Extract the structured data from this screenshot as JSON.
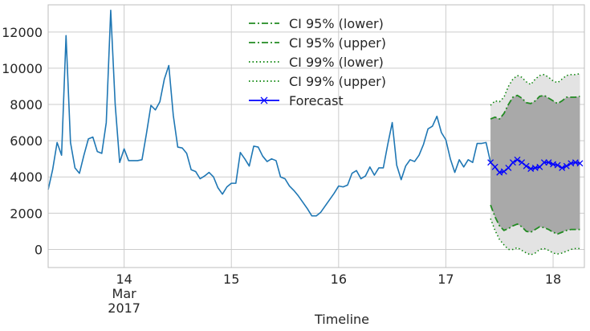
{
  "chart_data": {
    "type": "line",
    "xlabel": "Timeline",
    "ylabel": "",
    "title": "",
    "x_start": "2017-03-13 07:00",
    "x_end": "2017-03-18 07:00",
    "ylim": [
      -1000,
      13500
    ],
    "grid": true,
    "legend_position": "top-center",
    "x_ticks": [
      {
        "label": "14",
        "sub": "Mar",
        "sub2": "2017",
        "date": "2017-03-14 00:00"
      },
      {
        "label": "15",
        "sub": "",
        "sub2": "",
        "date": "2017-03-15 00:00"
      },
      {
        "label": "16",
        "sub": "",
        "sub2": "",
        "date": "2017-03-16 00:00"
      },
      {
        "label": "17",
        "sub": "",
        "sub2": "",
        "date": "2017-03-17 00:00"
      },
      {
        "label": "18",
        "sub": "",
        "sub2": "",
        "date": "2017-03-18 00:00"
      }
    ],
    "y_ticks": [
      0,
      2000,
      4000,
      6000,
      8000,
      10000,
      12000
    ],
    "y_tick_labels": [
      "0",
      "2000",
      "4000",
      "6000",
      "8000",
      "10000",
      "12000"
    ],
    "observed": {
      "name": "",
      "color": "#1f77b4",
      "x_start": "2017-03-13 07:00",
      "step_hours": 1,
      "values": [
        3300,
        4400,
        5900,
        5200,
        11800,
        5900,
        4500,
        4200,
        5200,
        6100,
        6200,
        5400,
        5300,
        7000,
        13200,
        8000,
        4800,
        5550,
        4900,
        4900,
        4900,
        4950,
        6400,
        7950,
        7700,
        8150,
        9400,
        10150,
        7400,
        5650,
        5600,
        5300,
        4400,
        4300,
        3900,
        4050,
        4250,
        4000,
        3400,
        3050,
        3450,
        3650,
        3650,
        5350,
        5000,
        4600,
        5700,
        5650,
        5150,
        4850,
        5000,
        4900,
        4000,
        3900,
        3500,
        3250,
        2950,
        2600,
        2250,
        1850,
        1850,
        2050,
        2400,
        2750,
        3100,
        3500,
        3450,
        3550,
        4200,
        4350,
        3900,
        4050,
        4550,
        4100,
        4500,
        4500,
        5800,
        7000,
        4650,
        3850,
        4600,
        4950,
        4850,
        5200,
        5800,
        6650,
        6800,
        7350,
        6450,
        6050,
        5000,
        4250,
        4950,
        4550,
        4950,
        4800,
        5850,
        5850,
        5900,
        4800
      ]
    },
    "forecast": {
      "x_start": "2017-03-17 10:00",
      "step_hours": 1,
      "values": [
        4800,
        4550,
        4250,
        4300,
        4500,
        4800,
        4950,
        4800,
        4600,
        4450,
        4500,
        4550,
        4800,
        4800,
        4700,
        4650,
        4500,
        4600,
        4750,
        4800,
        4750
      ],
      "ci95_lower": [
        2450,
        1800,
        1300,
        1050,
        1150,
        1300,
        1400,
        1250,
        1000,
        950,
        1100,
        1250,
        1200,
        1100,
        950,
        850,
        950,
        1050,
        1100,
        1100,
        1100
      ],
      "ci95_upper": [
        7200,
        7300,
        7200,
        7500,
        8000,
        8400,
        8500,
        8350,
        8100,
        8050,
        8200,
        8450,
        8500,
        8350,
        8200,
        8050,
        8200,
        8400,
        8400,
        8400,
        8450
      ],
      "ci99_lower": [
        1700,
        1050,
        550,
        250,
        0,
        0,
        100,
        -50,
        -200,
        -300,
        -200,
        0,
        50,
        -50,
        -200,
        -250,
        -200,
        -100,
        0,
        50,
        50
      ],
      "ci99_upper": [
        7950,
        8200,
        8150,
        8400,
        9000,
        9400,
        9600,
        9500,
        9250,
        9100,
        9400,
        9600,
        9650,
        9500,
        9300,
        9200,
        9400,
        9600,
        9650,
        9650,
        9700
      ]
    },
    "legend": [
      {
        "label": "CI 95% (lower)",
        "style": "dashdot",
        "color": "#228b22"
      },
      {
        "label": "CI 95% (upper)",
        "style": "dashdot",
        "color": "#228b22"
      },
      {
        "label": "CI 99% (lower)",
        "style": "dotted",
        "color": "#008000"
      },
      {
        "label": "CI 99% (upper)",
        "style": "dotted",
        "color": "#008000"
      },
      {
        "label": "Forecast",
        "style": "solid-x",
        "color": "#0000ff"
      }
    ],
    "colors": {
      "ci95_fill": "#a9a9a9",
      "ci99_fill": "#e3e3e3",
      "grid": "#cccccc",
      "axis": "#bdbdbd"
    }
  }
}
